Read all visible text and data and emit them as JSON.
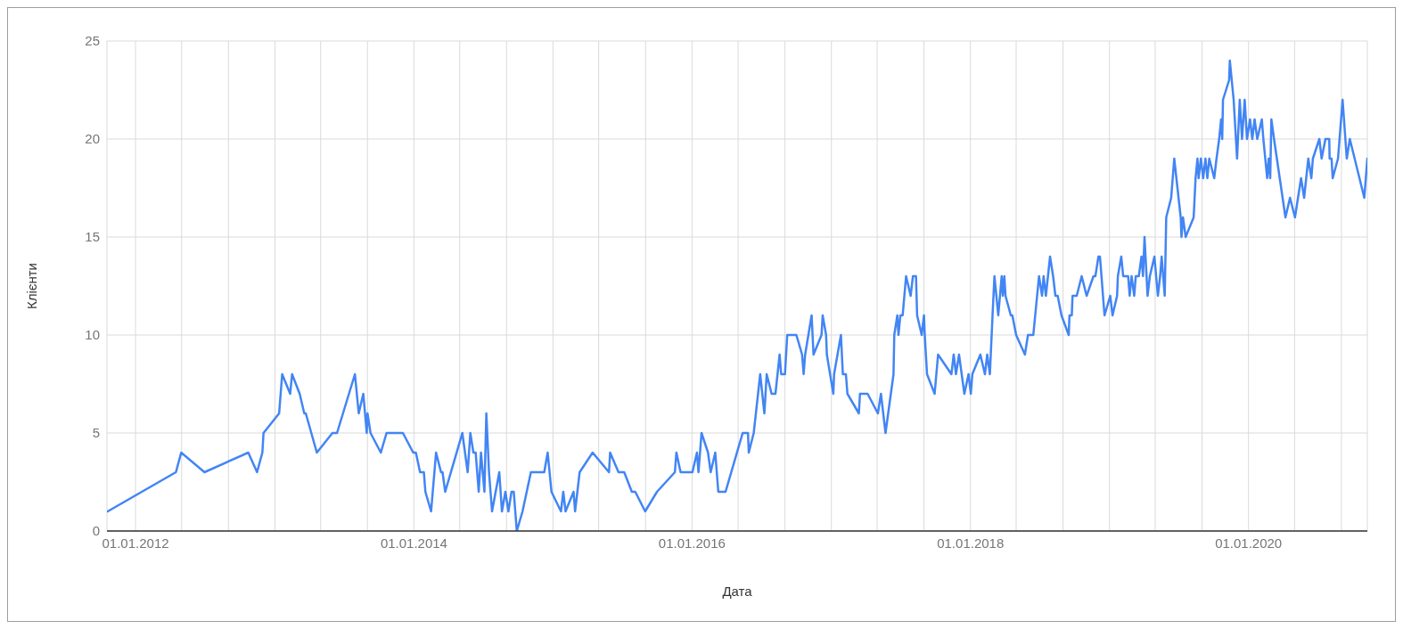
{
  "chart_data": {
    "type": "line",
    "xlabel": "Дата",
    "ylabel": "Клієнти",
    "x": [
      "2011-10-20",
      "2012-04-16",
      "2012-04-30",
      "2012-06-30",
      "2012-10-23",
      "2012-11-15",
      "2012-11-29",
      "2012-12-02",
      "2013-01-12",
      "2013-01-20",
      "2013-02-10",
      "2013-02-15",
      "2013-03-07",
      "2013-03-19",
      "2013-03-23",
      "2013-04-21",
      "2013-06-01",
      "2013-06-13",
      "2013-07-30",
      "2013-08-09",
      "2013-08-21",
      "2013-08-30",
      "2013-09-01",
      "2013-09-09",
      "2013-10-06",
      "2013-10-21",
      "2013-12-03",
      "2013-12-30",
      "2014-01-06",
      "2014-01-17",
      "2014-01-27",
      "2014-01-31",
      "2014-02-15",
      "2014-02-28",
      "2014-03-13",
      "2014-03-17",
      "2014-03-24",
      "2014-05-08",
      "2014-05-22",
      "2014-05-29",
      "2014-06-06",
      "2014-06-12",
      "2014-06-20",
      "2014-06-26",
      "2014-07-05",
      "2014-07-10",
      "2014-07-17",
      "2014-07-25",
      "2014-08-13",
      "2014-08-20",
      "2014-08-29",
      "2014-09-06",
      "2014-09-14",
      "2014-09-20",
      "2014-09-28",
      "2014-10-13",
      "2014-11-04",
      "2014-12-09",
      "2014-12-18",
      "2014-12-28",
      "2015-01-22",
      "2015-01-28",
      "2015-02-03",
      "2015-02-24",
      "2015-02-28",
      "2015-03-12",
      "2015-04-15",
      "2015-05-28",
      "2015-05-31",
      "2015-06-22",
      "2015-07-07",
      "2015-07-27",
      "2015-08-05",
      "2015-08-31",
      "2015-10-01",
      "2015-11-17",
      "2015-11-21",
      "2015-12-02",
      "2016-01-02",
      "2016-01-14",
      "2016-01-18",
      "2016-01-26",
      "2016-02-12",
      "2016-02-19",
      "2016-03-02",
      "2016-03-10",
      "2016-03-29",
      "2016-05-13",
      "2016-05-17",
      "2016-05-27",
      "2016-05-29",
      "2016-06-11",
      "2016-06-28",
      "2016-07-09",
      "2016-07-15",
      "2016-07-28",
      "2016-08-07",
      "2016-08-18",
      "2016-08-22",
      "2016-09-01",
      "2016-09-07",
      "2016-09-17",
      "2016-10-01",
      "2016-10-16",
      "2016-10-20",
      "2016-10-24",
      "2016-11-10",
      "2016-11-15",
      "2016-12-06",
      "2016-12-09",
      "2016-12-18",
      "2016-12-20",
      "2017-01-06",
      "2017-01-08",
      "2017-01-26",
      "2017-01-31",
      "2017-02-08",
      "2017-02-12",
      "2017-03-14",
      "2017-03-17",
      "2017-04-06",
      "2017-05-03",
      "2017-05-11",
      "2017-05-23",
      "2017-06-13",
      "2017-06-15",
      "2017-06-23",
      "2017-06-26",
      "2017-07-01",
      "2017-07-07",
      "2017-07-16",
      "2017-07-28",
      "2017-08-03",
      "2017-08-11",
      "2017-08-14",
      "2017-08-26",
      "2017-09-01",
      "2017-09-03",
      "2017-09-09",
      "2017-09-29",
      "2017-10-08",
      "2017-11-12",
      "2017-11-18",
      "2017-11-24",
      "2017-12-02",
      "2017-12-16",
      "2017-12-27",
      "2018-01-02",
      "2018-01-06",
      "2018-01-27",
      "2018-02-08",
      "2018-02-14",
      "2018-02-21",
      "2018-02-28",
      "2018-03-05",
      "2018-03-15",
      "2018-03-24",
      "2018-03-27",
      "2018-03-31",
      "2018-04-03",
      "2018-04-17",
      "2018-04-21",
      "2018-05-01",
      "2018-05-24",
      "2018-06-01",
      "2018-06-15",
      "2018-06-20",
      "2018-06-30",
      "2018-07-08",
      "2018-07-12",
      "2018-07-18",
      "2018-07-29",
      "2018-08-06",
      "2018-08-12",
      "2018-08-18",
      "2018-08-28",
      "2018-09-16",
      "2018-09-18",
      "2018-09-24",
      "2018-09-26",
      "2018-10-07",
      "2018-10-20",
      "2018-11-02",
      "2018-11-20",
      "2018-11-25",
      "2018-12-03",
      "2018-12-07",
      "2018-12-11",
      "2018-12-19",
      "2019-01-03",
      "2019-01-09",
      "2019-01-21",
      "2019-01-23",
      "2019-02-01",
      "2019-02-06",
      "2019-02-19",
      "2019-02-23",
      "2019-02-28",
      "2019-03-07",
      "2019-03-11",
      "2019-03-19",
      "2019-03-26",
      "2019-03-30",
      "2019-04-03",
      "2019-04-11",
      "2019-04-17",
      "2019-04-29",
      "2019-05-08",
      "2019-05-14",
      "2019-05-18",
      "2019-05-26",
      "2019-05-30",
      "2019-06-12",
      "2019-06-20",
      "2019-07-07",
      "2019-07-09",
      "2019-07-13",
      "2019-07-20",
      "2019-08-10",
      "2019-08-15",
      "2019-08-20",
      "2019-08-23",
      "2019-08-29",
      "2019-09-04",
      "2019-09-10",
      "2019-09-15",
      "2019-09-20",
      "2019-10-03",
      "2019-10-09",
      "2019-10-16",
      "2019-10-21",
      "2019-10-24",
      "2019-10-26",
      "2019-11-11",
      "2019-11-13",
      "2019-11-23",
      "2019-12-02",
      "2019-12-09",
      "2019-12-15",
      "2019-12-22",
      "2019-12-28",
      "2020-01-05",
      "2020-01-11",
      "2020-01-17",
      "2020-01-24",
      "2020-02-05",
      "2020-02-09",
      "2020-02-19",
      "2020-02-23",
      "2020-02-27",
      "2020-03-01",
      "2020-03-08",
      "2020-04-07",
      "2020-04-19",
      "2020-05-02",
      "2020-05-18",
      "2020-05-26",
      "2020-06-06",
      "2020-06-14",
      "2020-06-18",
      "2020-07-05",
      "2020-07-11",
      "2020-07-21",
      "2020-07-31",
      "2020-08-01",
      "2020-08-06",
      "2020-08-09",
      "2020-08-23",
      "2020-08-31",
      "2020-09-04",
      "2020-09-15",
      "2020-09-23",
      "2020-10-31",
      "2020-11-08"
    ],
    "values": [
      1,
      3,
      4,
      3,
      4,
      3,
      4,
      5,
      6,
      8,
      7,
      8,
      7,
      6,
      6,
      4,
      5,
      5,
      8,
      6,
      7,
      5,
      6,
      5,
      4,
      5,
      5,
      4,
      4,
      3,
      3,
      2,
      1,
      4,
      3,
      3,
      2,
      5,
      3,
      5,
      4,
      4,
      2,
      4,
      2,
      6,
      3,
      1,
      3,
      1,
      2,
      1,
      2,
      2,
      0,
      1,
      3,
      3,
      4,
      2,
      1,
      2,
      1,
      2,
      1,
      3,
      4,
      3,
      4,
      3,
      3,
      2,
      2,
      1,
      2,
      3,
      4,
      3,
      3,
      4,
      3,
      5,
      4,
      3,
      4,
      2,
      2,
      5,
      5,
      5,
      4,
      5,
      8,
      6,
      8,
      7,
      7,
      9,
      8,
      8,
      10,
      10,
      10,
      9,
      8,
      9,
      11,
      9,
      10,
      11,
      10,
      9,
      7,
      8,
      10,
      8,
      8,
      7,
      6,
      7,
      7,
      6,
      7,
      5,
      8,
      10,
      11,
      10,
      11,
      11,
      13,
      12,
      13,
      13,
      11,
      10,
      11,
      10,
      8,
      7,
      9,
      8,
      9,
      8,
      9,
      7,
      8,
      7,
      8,
      9,
      8,
      9,
      8,
      11,
      13,
      11,
      13,
      12,
      13,
      12,
      11,
      11,
      10,
      9,
      10,
      10,
      11,
      13,
      12,
      13,
      12,
      14,
      13,
      12,
      12,
      11,
      10,
      11,
      11,
      12,
      12,
      13,
      12,
      13,
      13,
      14,
      14,
      13,
      11,
      12,
      11,
      12,
      13,
      14,
      13,
      13,
      12,
      13,
      12,
      13,
      13,
      14,
      13,
      15,
      12,
      13,
      14,
      12,
      13,
      14,
      12,
      16,
      17,
      19,
      16,
      15,
      16,
      15,
      16,
      18,
      19,
      18,
      19,
      18,
      19,
      18,
      19,
      18,
      19,
      20,
      21,
      20,
      22,
      23,
      24,
      22,
      19,
      22,
      20,
      22,
      20,
      21,
      20,
      21,
      20,
      21,
      20,
      18,
      19,
      18,
      21,
      20,
      16,
      17,
      16,
      18,
      17,
      19,
      18,
      19,
      20,
      19,
      20,
      20,
      19,
      19,
      18,
      19,
      21,
      22,
      19,
      20,
      17,
      19
    ],
    "color": "#4285f4",
    "xlim": [
      "2011-10-18",
      "2020-11-08"
    ],
    "xticks": [
      {
        "value": "2012-01-01",
        "label": "01.01.2012"
      },
      {
        "value": "2012-05-01",
        "label": null
      },
      {
        "value": "2012-09-01",
        "label": null
      },
      {
        "value": "2013-01-01",
        "label": null
      },
      {
        "value": "2013-05-01",
        "label": null
      },
      {
        "value": "2013-09-01",
        "label": null
      },
      {
        "value": "2014-01-01",
        "label": "01.01.2014"
      },
      {
        "value": "2014-05-01",
        "label": null
      },
      {
        "value": "2014-09-01",
        "label": null
      },
      {
        "value": "2015-01-01",
        "label": null
      },
      {
        "value": "2015-05-01",
        "label": null
      },
      {
        "value": "2015-09-01",
        "label": null
      },
      {
        "value": "2016-01-01",
        "label": "01.01.2016"
      },
      {
        "value": "2016-05-01",
        "label": null
      },
      {
        "value": "2016-09-01",
        "label": null
      },
      {
        "value": "2017-01-01",
        "label": null
      },
      {
        "value": "2017-05-01",
        "label": null
      },
      {
        "value": "2017-09-01",
        "label": null
      },
      {
        "value": "2018-01-01",
        "label": "01.01.2018"
      },
      {
        "value": "2018-05-01",
        "label": null
      },
      {
        "value": "2018-09-01",
        "label": null
      },
      {
        "value": "2019-01-01",
        "label": null
      },
      {
        "value": "2019-05-01",
        "label": null
      },
      {
        "value": "2019-09-01",
        "label": null
      },
      {
        "value": "2020-01-01",
        "label": "01.01.2020"
      },
      {
        "value": "2020-05-01",
        "label": null
      },
      {
        "value": "2020-09-01",
        "label": null
      }
    ],
    "ylim": [
      0,
      25
    ],
    "yticks": [
      0,
      5,
      10,
      15,
      20,
      25
    ],
    "grid": true,
    "marker": "none",
    "line_style": "solid"
  }
}
